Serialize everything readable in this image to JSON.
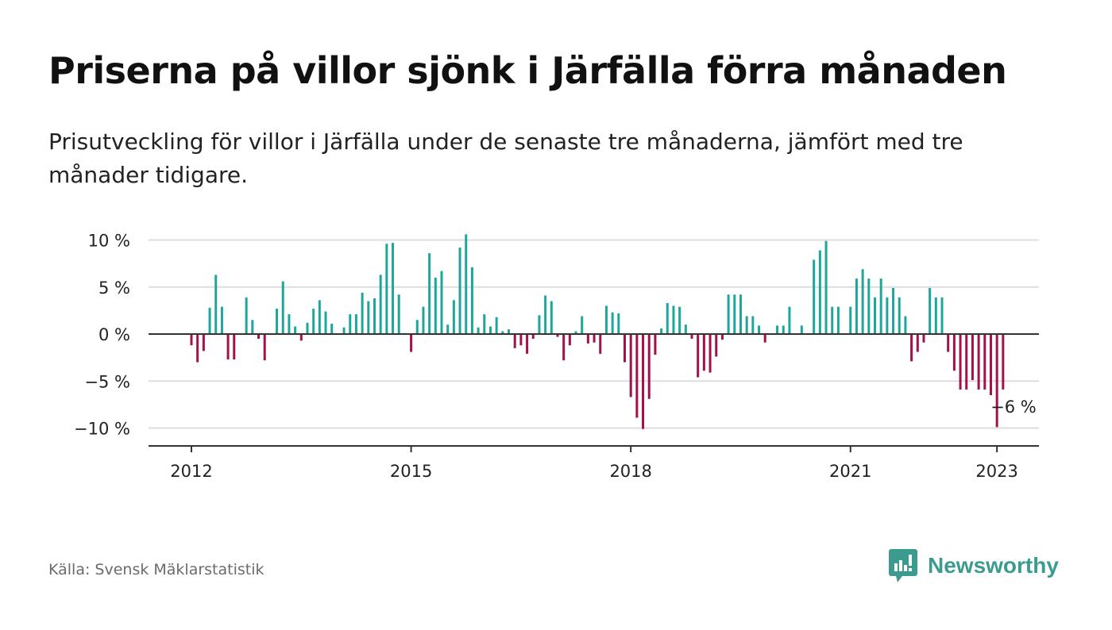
{
  "title": "Priserna på villor sjönk i Järfälla förra månaden",
  "subtitle": "Prisutveckling för villor i Järfälla under de senaste tre månaderna, jämfört med tre månader tidigare.",
  "source": "Källa: Svensk Mäklarstatistik",
  "brand": {
    "name": "Newsworthy",
    "icon": "newsworthy-logo-icon",
    "color": "#3b9b8f"
  },
  "colors": {
    "positive": "#1fa69a",
    "negative": "#a3104a",
    "grid": "#dddddd",
    "axis": "#333333"
  },
  "chart_data": {
    "type": "bar",
    "title": "",
    "xlabel": "",
    "ylabel": "",
    "ylim": [
      -12,
      10.5
    ],
    "y_ticks": [
      {
        "value": 10,
        "label": "10 %"
      },
      {
        "value": 5,
        "label": "5 %"
      },
      {
        "value": 0,
        "label": "0 %"
      },
      {
        "value": -5,
        "label": "−5 %"
      },
      {
        "value": -10,
        "label": "−10 %"
      }
    ],
    "x_ticks": [
      {
        "value": "2012-01",
        "label": "2012"
      },
      {
        "value": "2015-01",
        "label": "2015"
      },
      {
        "value": "2018-01",
        "label": "2018"
      },
      {
        "value": "2021-01",
        "label": "2021"
      },
      {
        "value": "2023-01",
        "label": "2023"
      }
    ],
    "x_range": [
      "2011-06",
      "2023-05"
    ],
    "grid": true,
    "annotation": {
      "x": "2023-01",
      "label": "−6 %"
    },
    "values_start": "2012-01",
    "values": [
      -1.2,
      -3.0,
      -1.8,
      2.8,
      6.3,
      2.9,
      -2.7,
      -2.7,
      0,
      3.9,
      1.5,
      -0.5,
      -2.8,
      0,
      2.7,
      5.6,
      2.1,
      0.8,
      -0.7,
      1.2,
      2.7,
      3.6,
      2.4,
      1.1,
      0,
      0.7,
      2.1,
      2.1,
      4.4,
      3.5,
      3.8,
      6.3,
      9.6,
      9.7,
      4.2,
      0.1,
      -1.9,
      1.5,
      2.9,
      8.6,
      6.0,
      6.7,
      1.0,
      3.6,
      9.2,
      10.6,
      7.1,
      0.7,
      2.1,
      0.8,
      1.8,
      0.3,
      0.5,
      -1.5,
      -1.2,
      -2.1,
      -0.5,
      2.0,
      4.1,
      3.5,
      -0.3,
      -2.8,
      -1.2,
      0.3,
      1.9,
      -1.0,
      -0.9,
      -2.1,
      3.0,
      2.3,
      2.2,
      -3.0,
      -6.7,
      -8.9,
      -10.1,
      -6.9,
      -2.2,
      0.6,
      3.3,
      3.0,
      2.9,
      1.0,
      -0.5,
      -4.6,
      -3.9,
      -4.1,
      -2.4,
      -0.6,
      4.2,
      4.2,
      4.2,
      1.9,
      1.9,
      0.9,
      -0.9,
      0,
      0.9,
      0.9,
      2.9,
      0,
      0.9,
      0,
      7.9,
      8.9,
      9.9,
      2.9,
      2.9,
      0,
      2.9,
      5.9,
      6.9,
      5.9,
      3.9,
      5.9,
      3.9,
      4.9,
      3.9,
      1.9,
      -2.9,
      -1.9,
      -0.9,
      4.9,
      3.9,
      3.9,
      -1.9,
      -3.9,
      -5.9,
      -5.9,
      -4.9,
      -5.9,
      -5.9,
      -6.5,
      -9.9,
      -5.9
    ]
  }
}
